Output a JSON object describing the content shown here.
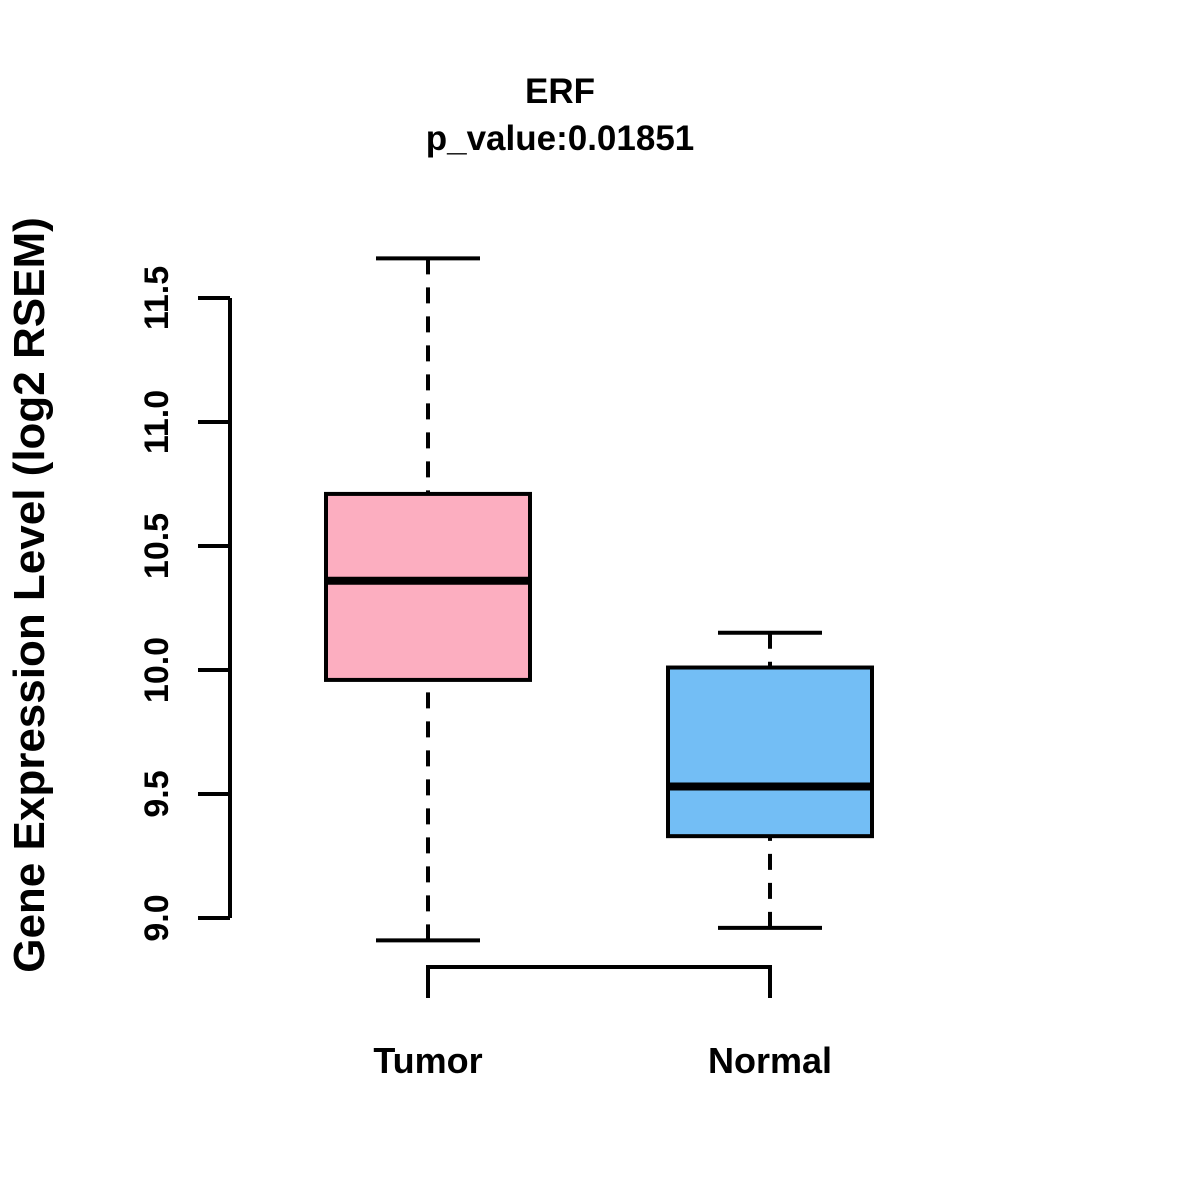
{
  "figure": {
    "title": "ERF",
    "subtitle": "p_value:0.01851",
    "ylabel": "Gene Expression Level (log2 RSEM)"
  },
  "chart_data": {
    "type": "boxplot",
    "title": "ERF",
    "subtitle": "p_value:0.01851",
    "ylabel": "Gene Expression Level (log2 RSEM)",
    "xlabel": "",
    "categories": [
      "Tumor",
      "Normal"
    ],
    "ylim": [
      9.0,
      11.5
    ],
    "yticks": [
      9.0,
      9.5,
      10.0,
      10.5,
      11.0,
      11.5
    ],
    "grid": false,
    "legend": "none",
    "axis_color": "#000000",
    "series": [
      {
        "name": "Tumor",
        "fill_color": "#FCAEC0",
        "stats": {
          "whisker_low": 8.91,
          "q1": 9.96,
          "median": 10.36,
          "q3": 10.71,
          "whisker_high": 11.66
        }
      },
      {
        "name": "Normal",
        "fill_color": "#73BEF5",
        "stats": {
          "whisker_low": 8.96,
          "q1": 9.33,
          "median": 9.53,
          "q3": 10.01,
          "whisker_high": 10.15
        }
      }
    ]
  }
}
